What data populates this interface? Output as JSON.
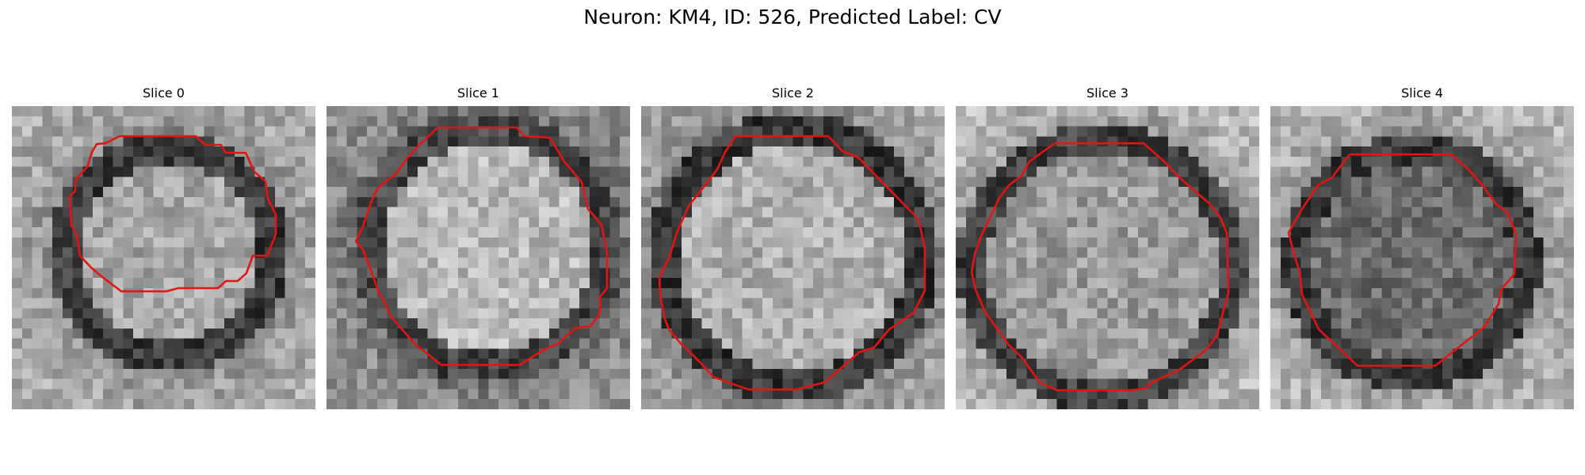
{
  "figure": {
    "title": "Neuron: KM4, ID: 526, Predicted Label: CV"
  },
  "contour_color": "#e31414",
  "panels": [
    {
      "title": "Slice 0",
      "image": "grayscale microscopy crop with red segmentation contour"
    },
    {
      "title": "Slice 1",
      "image": "grayscale microscopy crop with red segmentation contour"
    },
    {
      "title": "Slice 2",
      "image": "grayscale microscopy crop with red segmentation contour"
    },
    {
      "title": "Slice 3",
      "image": "grayscale microscopy crop with red segmentation contour"
    },
    {
      "title": "Slice 4",
      "image": "grayscale microscopy crop with red segmentation contour"
    }
  ]
}
